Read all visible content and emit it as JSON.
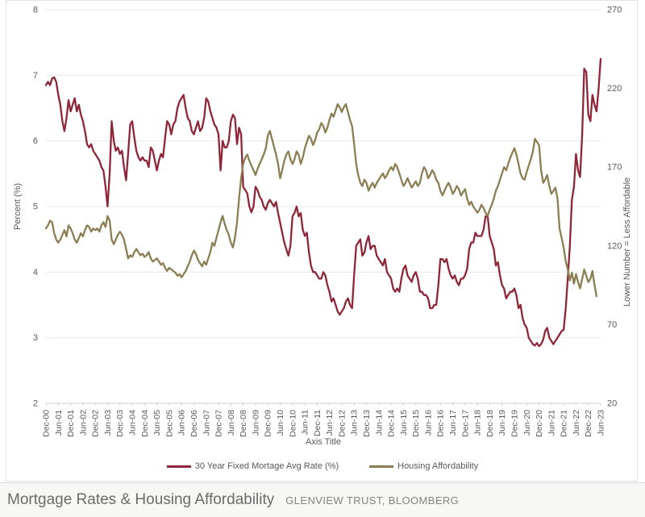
{
  "caption": {
    "title": "Mortgage Rates & Housing Affordability",
    "source": "GLENVIEW TRUST, BLOOMBERG"
  },
  "colors": {
    "mortgage_line": "#8e2638",
    "affordability_line": "#8c7e53",
    "grid": "#e8e8e8",
    "axis_line": "#cfcfcf",
    "axis_text": "#595959"
  },
  "chart_data": {
    "type": "line",
    "title": "",
    "grid": "horizontal",
    "legend_position": "bottom",
    "x_axis": {
      "title": "Axis Title",
      "interval": "monthly, labeled every 6 months",
      "labels": [
        "Dec-00",
        "Jun-01",
        "Dec-01",
        "Jun-02",
        "Dec-02",
        "Jun-03",
        "Dec-03",
        "Jun-04",
        "Dec-04",
        "Jun-05",
        "Dec-05",
        "Jun-06",
        "Dec-06",
        "Jun-07",
        "Dec-07",
        "Jun-08",
        "Dec-08",
        "Jun-09",
        "Dec-09",
        "Jun-10",
        "Dec-10",
        "Jun-11",
        "Dec-11",
        "Jun-12",
        "Dec-12",
        "Jun-13",
        "Dec-13",
        "Jun-14",
        "Dec-14",
        "Jun-15",
        "Dec-15",
        "Jun-16",
        "Dec-16",
        "Jun-17",
        "Dec-17",
        "Jun-18",
        "Dec-18",
        "Jun-19",
        "Dec-19",
        "Jun-20",
        "Dec-20",
        "Jun-21",
        "Dec-21",
        "Jun-22",
        "Dec-22",
        "Jun-23"
      ]
    },
    "y_left": {
      "title": "Percent (%)",
      "min": 2,
      "max": 8,
      "ticks": [
        8,
        7,
        6,
        5,
        4,
        3,
        2
      ]
    },
    "y_right": {
      "title": "Lower Number = Less Affordable",
      "min": 20,
      "max": 270,
      "ticks": [
        270,
        220,
        170,
        120,
        70,
        20
      ]
    },
    "legend": [
      {
        "label": "30 Year Fixed Mortage Avg Rate (%)",
        "color": "#8e2638"
      },
      {
        "label": "Housing Affordability",
        "color": "#8c7e53"
      }
    ],
    "series": [
      {
        "name": "30 Year Fixed Mortage Avg Rate (%)",
        "axis": "left",
        "color": "#8e2638",
        "start": "Dec-00",
        "values": [
          6.85,
          6.9,
          6.85,
          6.95,
          6.97,
          6.9,
          6.7,
          6.55,
          6.3,
          6.15,
          6.35,
          6.62,
          6.45,
          6.55,
          6.65,
          6.45,
          6.55,
          6.4,
          6.3,
          6.15,
          5.95,
          5.9,
          5.95,
          5.85,
          5.8,
          5.75,
          5.7,
          5.6,
          5.55,
          5.3,
          5.0,
          5.5,
          6.3,
          6.0,
          5.85,
          5.9,
          5.8,
          5.85,
          5.6,
          5.4,
          5.8,
          6.25,
          6.3,
          6.05,
          5.85,
          5.75,
          5.7,
          5.75,
          5.7,
          5.7,
          5.6,
          5.9,
          5.85,
          5.7,
          5.55,
          5.7,
          5.8,
          5.75,
          6.05,
          6.3,
          6.25,
          6.1,
          6.25,
          6.3,
          6.5,
          6.6,
          6.65,
          6.7,
          6.5,
          6.35,
          6.3,
          6.15,
          6.1,
          6.2,
          6.3,
          6.15,
          6.2,
          6.35,
          6.65,
          6.6,
          6.45,
          6.35,
          6.25,
          6.2,
          6.1,
          5.55,
          6.0,
          5.9,
          5.9,
          6.0,
          6.3,
          6.4,
          6.35,
          5.95,
          6.2,
          6.1,
          5.3,
          5.25,
          5.2,
          5.0,
          4.91,
          5.0,
          5.3,
          5.25,
          5.15,
          5.1,
          5.0,
          4.95,
          5.05,
          5.1,
          5.05,
          5.0,
          5.07,
          4.9,
          4.75,
          4.6,
          4.45,
          4.35,
          4.25,
          4.4,
          4.85,
          4.9,
          5.0,
          4.85,
          4.9,
          4.65,
          4.55,
          4.6,
          4.3,
          4.1,
          4.0,
          4.0,
          3.95,
          3.9,
          3.9,
          4.0,
          3.95,
          3.8,
          3.7,
          3.55,
          3.6,
          3.5,
          3.4,
          3.35,
          3.4,
          3.45,
          3.55,
          3.6,
          3.5,
          3.45,
          3.95,
          4.4,
          4.45,
          4.5,
          4.25,
          4.3,
          4.45,
          4.55,
          4.35,
          4.4,
          4.4,
          4.25,
          4.2,
          4.15,
          4.1,
          4.2,
          4.0,
          3.95,
          3.9,
          3.75,
          3.7,
          3.75,
          3.7,
          3.9,
          4.05,
          4.1,
          3.95,
          3.9,
          3.85,
          3.95,
          4.0,
          3.9,
          3.7,
          3.7,
          3.65,
          3.65,
          3.6,
          3.45,
          3.45,
          3.5,
          3.5,
          3.8,
          4.2,
          4.2,
          4.15,
          4.2,
          4.05,
          3.95,
          3.9,
          3.95,
          3.85,
          3.8,
          3.9,
          3.9,
          3.95,
          4.05,
          4.35,
          4.45,
          4.45,
          4.6,
          4.55,
          4.55,
          4.55,
          4.65,
          4.85,
          4.85,
          4.55,
          4.45,
          4.35,
          4.1,
          4.15,
          3.95,
          3.8,
          3.75,
          3.6,
          3.65,
          3.7,
          3.7,
          3.75,
          3.65,
          3.45,
          3.5,
          3.3,
          3.2,
          3.15,
          3.0,
          2.95,
          2.9,
          2.88,
          2.92,
          2.87,
          2.9,
          2.97,
          3.1,
          3.15,
          3.0,
          2.95,
          2.9,
          2.95,
          3.0,
          3.05,
          3.1,
          3.12,
          3.45,
          3.9,
          4.4,
          5.1,
          5.3,
          5.8,
          5.55,
          5.45,
          6.1,
          7.1,
          7.05,
          6.4,
          6.3,
          6.7,
          6.55,
          6.45,
          6.8,
          7.25
        ]
      },
      {
        "name": "Housing Affordability",
        "axis": "right",
        "color": "#8c7e53",
        "start": "Dec-00",
        "values": [
          131,
          133,
          136,
          135,
          128,
          124,
          122,
          124,
          127,
          130,
          126,
          133,
          131,
          128,
          124,
          122,
          125,
          128,
          126,
          130,
          133,
          132,
          129,
          131,
          130,
          131,
          129,
          133,
          135,
          132,
          139,
          136,
          124,
          121,
          124,
          127,
          129,
          127,
          124,
          118,
          112,
          114,
          113,
          116,
          118,
          116,
          114,
          115,
          113,
          114,
          116,
          112,
          110,
          111,
          112,
          110,
          108,
          109,
          106,
          104,
          106,
          105,
          104,
          103,
          101,
          102,
          100,
          102,
          104,
          107,
          110,
          114,
          117,
          115,
          111,
          109,
          107,
          110,
          108,
          112,
          116,
          122,
          120,
          125,
          130,
          135,
          139,
          134,
          130,
          127,
          122,
          119,
          125,
          135,
          150,
          163,
          172,
          176,
          178,
          174,
          171,
          168,
          165,
          169,
          172,
          175,
          178,
          182,
          190,
          193,
          188,
          183,
          178,
          172,
          163,
          168,
          174,
          178,
          180,
          175,
          172,
          175,
          180,
          178,
          172,
          176,
          182,
          186,
          190,
          188,
          184,
          187,
          192,
          194,
          198,
          196,
          192,
          195,
          200,
          204,
          202,
          206,
          210,
          208,
          205,
          208,
          210,
          205,
          200,
          196,
          185,
          172,
          165,
          160,
          158,
          162,
          160,
          155,
          158,
          160,
          157,
          160,
          162,
          164,
          166,
          163,
          165,
          168,
          170,
          168,
          172,
          170,
          166,
          162,
          158,
          160,
          163,
          160,
          157,
          159,
          161,
          158,
          160,
          166,
          170,
          168,
          163,
          165,
          168,
          166,
          162,
          160,
          155,
          152,
          155,
          158,
          160,
          157,
          153,
          155,
          158,
          156,
          152,
          154,
          156,
          150,
          146,
          148,
          145,
          143,
          141,
          143,
          146,
          144,
          141,
          139,
          143,
          146,
          150,
          155,
          158,
          162,
          166,
          170,
          168,
          172,
          176,
          179,
          182,
          178,
          172,
          166,
          163,
          162,
          167,
          171,
          175,
          180,
          188,
          186,
          184,
          168,
          160,
          162,
          165,
          158,
          153,
          155,
          157,
          150,
          131,
          125,
          119,
          110,
          105,
          98,
          103,
          96,
          102,
          97,
          93,
          99,
          105,
          101,
          97,
          99,
          104,
          95,
          88
        ]
      }
    ]
  }
}
